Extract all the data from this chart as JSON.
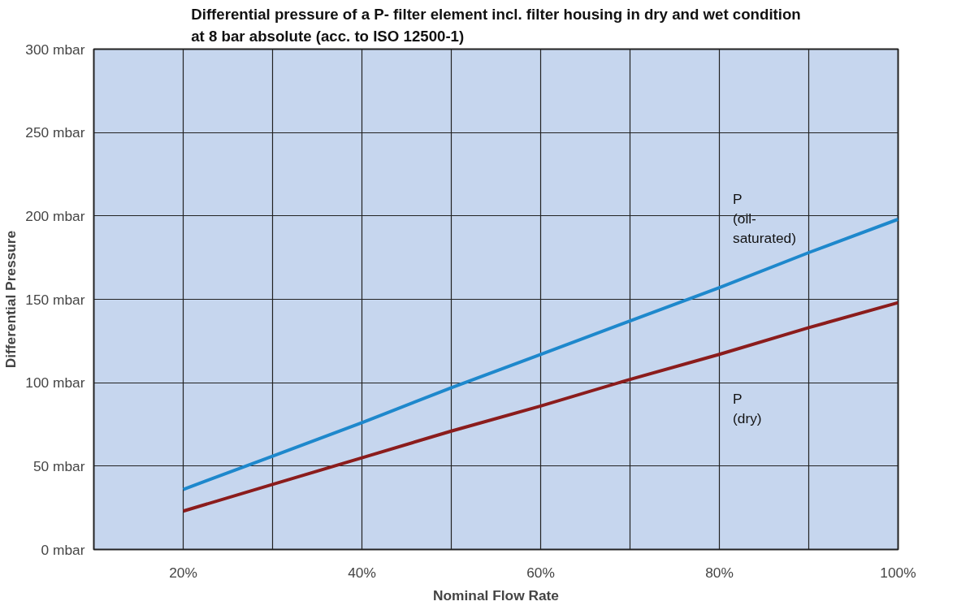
{
  "chart_data": {
    "type": "line",
    "title": "Differential pressure of a P- filter element incl. filter housing in dry and wet condition\nat 8 bar absolute (acc. to ISO 12500-1)",
    "xlabel": "Nominal Flow Rate",
    "ylabel": "Differential Pressure",
    "x": [
      20,
      30,
      40,
      50,
      60,
      70,
      80,
      90,
      100
    ],
    "series": [
      {
        "name": "P\n(oil-\nsaturated)",
        "color": "#1e88cc",
        "values": [
          36,
          56,
          76,
          97,
          117,
          137,
          157,
          178,
          198
        ]
      },
      {
        "name": "P\n(dry)",
        "color": "#8b1c1c",
        "values": [
          23,
          39,
          55,
          71,
          86,
          102,
          117,
          133,
          148
        ]
      }
    ],
    "xlim": [
      10,
      100
    ],
    "ylim": [
      0,
      300
    ],
    "xticks": [
      {
        "value": 10,
        "label": null
      },
      {
        "value": 20,
        "label": "20%"
      },
      {
        "value": 30,
        "label": null
      },
      {
        "value": 40,
        "label": "40%"
      },
      {
        "value": 50,
        "label": null
      },
      {
        "value": 60,
        "label": "60%"
      },
      {
        "value": 70,
        "label": null
      },
      {
        "value": 80,
        "label": "80%"
      },
      {
        "value": 90,
        "label": null
      },
      {
        "value": 100,
        "label": "100%"
      }
    ],
    "yticks": [
      {
        "value": 0,
        "label": "0 mbar"
      },
      {
        "value": 50,
        "label": "50 mbar"
      },
      {
        "value": 100,
        "label": "100 mbar"
      },
      {
        "value": 150,
        "label": "150 mbar"
      },
      {
        "value": 200,
        "label": "200 mbar"
      },
      {
        "value": 250,
        "label": "250 mbar"
      },
      {
        "value": 300,
        "label": "300 mbar"
      }
    ],
    "grid": true,
    "legend": false,
    "marker": "none",
    "line_style": "solid"
  }
}
